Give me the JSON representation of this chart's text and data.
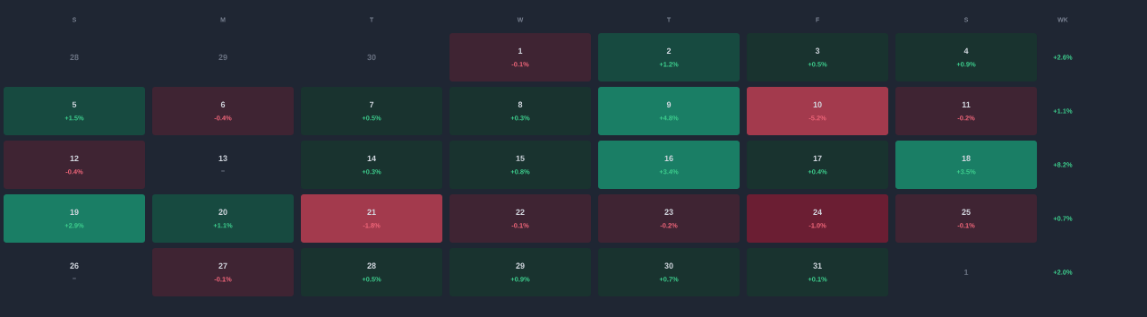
{
  "chart_data": {
    "type": "heatmap",
    "categories": [
      "S",
      "M",
      "T",
      "W",
      "T",
      "F",
      "S"
    ],
    "y_categories": [
      null,
      null,
      null,
      null,
      null
    ],
    "y2label": "WK",
    "y2_categories": [
      "+2.6%",
      "+1.1%",
      "+8.2%",
      "+0.7%",
      "+2.0%"
    ],
    "cells": [
      [
        null,
        null,
        null,
        -0.1,
        1.2,
        0.5,
        0.9
      ],
      [
        1.5,
        -0.4,
        0.5,
        0.3,
        4.8,
        -5.2,
        -0.2
      ],
      [
        -0.4,
        null,
        0.3,
        0.8,
        3.4,
        0.4,
        3.5
      ],
      [
        2.9,
        1.1,
        -1.8,
        -0.1,
        -0.2,
        -1.0,
        -0.1
      ],
      [
        null,
        -0.1,
        0.5,
        0.9,
        0.7,
        0.1,
        null
      ]
    ],
    "cell_labels": [
      [
        null,
        null,
        null,
        "-0.1%",
        "+1.2%",
        "+0.5%",
        "+0.9%"
      ],
      [
        "+1.5%",
        "-0.4%",
        "+0.5%",
        "+0.3%",
        "+4.8%",
        "-5.2%",
        "-0.2%"
      ],
      [
        "-0.4%",
        "–",
        "+0.3%",
        "+0.8%",
        "+3.4%",
        "+0.4%",
        "+3.5%"
      ],
      [
        "+2.9%",
        "+1.1%",
        "-1.8%",
        "-0.1%",
        "-0.2%",
        "-1.0%",
        "-0.1%"
      ],
      [
        "–",
        "-0.1%",
        "+0.5%",
        "+0.9%",
        "+0.7%",
        "+0.1%",
        null
      ]
    ],
    "annotations": [
      "28",
      "29",
      "30",
      "1",
      "2",
      "3",
      "4",
      "5",
      "6",
      "7",
      "8",
      "9",
      "10",
      "11",
      "12",
      "13",
      "14",
      "15",
      "16",
      "17",
      "18",
      "19",
      "20",
      "21",
      "22",
      "23",
      "24",
      "25",
      "26",
      "27",
      "28",
      "29",
      "30",
      "31",
      "1"
    ]
  }
}
